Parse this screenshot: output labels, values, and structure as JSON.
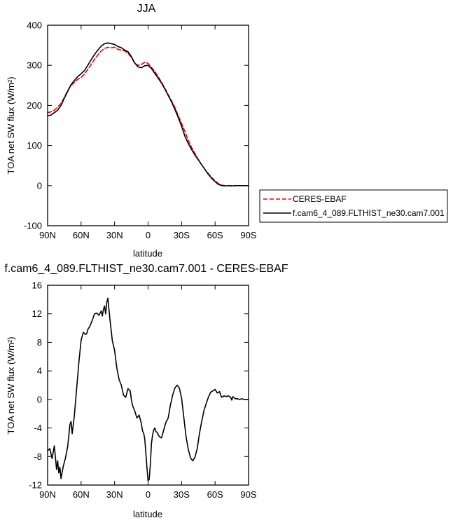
{
  "chart_data": [
    {
      "type": "line",
      "title": "JJA",
      "xlabel": "latitude",
      "ylabel": "TOA net SW flux (W/m²)",
      "xlim": [
        90,
        -90
      ],
      "ylim": [
        -100,
        400
      ],
      "x_ticks": [
        90,
        60,
        30,
        0,
        -30,
        -60,
        -90
      ],
      "x_tick_labels": [
        "90N",
        "60N",
        "30N",
        "0",
        "30S",
        "60S",
        "90S"
      ],
      "y_ticks": [
        -100,
        0,
        100,
        200,
        300,
        400
      ],
      "y_tick_labels": [
        "-100",
        "0",
        "100",
        "200",
        "300",
        "400"
      ],
      "legend_placement": "right",
      "series": [
        {
          "name": "CERES-EBAF",
          "color": "#e8000b",
          "dash": "dashed",
          "x": [
            90,
            87,
            84,
            81,
            78,
            75,
            72,
            69,
            66,
            63,
            60,
            57,
            54,
            51,
            48,
            45,
            42,
            39,
            36,
            33,
            30,
            27,
            24,
            21,
            18,
            15,
            12,
            9,
            6,
            3,
            0,
            -3,
            -6,
            -9,
            -12,
            -15,
            -18,
            -21,
            -24,
            -27,
            -30,
            -33,
            -36,
            -39,
            -42,
            -45,
            -48,
            -51,
            -54,
            -57,
            -60,
            -63,
            -66,
            -69,
            -72,
            -75,
            -78,
            -81,
            -84,
            -87,
            -90
          ],
          "values": [
            182,
            184,
            188,
            196,
            205,
            220,
            237,
            250,
            258,
            265,
            270,
            278,
            290,
            302,
            315,
            326,
            336,
            342,
            345,
            344,
            345,
            340,
            338,
            336,
            330,
            320,
            305,
            300,
            302,
            308,
            305,
            295,
            285,
            272,
            258,
            243,
            227,
            212,
            195,
            175,
            155,
            135,
            113,
            95,
            80,
            65,
            52,
            40,
            30,
            20,
            12,
            5,
            1,
            0,
            0,
            0,
            0,
            0,
            0,
            0,
            0
          ]
        },
        {
          "name": "f.cam6_4_089.FLTHIST_ne30.cam7.001",
          "color": "#000000",
          "dash": "solid",
          "x": [
            90,
            87,
            84,
            81,
            78,
            75,
            72,
            69,
            66,
            63,
            60,
            57,
            54,
            51,
            48,
            45,
            42,
            39,
            36,
            33,
            30,
            27,
            24,
            21,
            18,
            15,
            12,
            9,
            6,
            3,
            0,
            -3,
            -6,
            -9,
            -12,
            -15,
            -18,
            -21,
            -24,
            -27,
            -30,
            -33,
            -36,
            -39,
            -42,
            -45,
            -48,
            -51,
            -54,
            -57,
            -60,
            -63,
            -66,
            -69,
            -72,
            -75,
            -78,
            -81,
            -84,
            -87,
            -90
          ],
          "values": [
            174,
            176,
            182,
            188,
            200,
            218,
            235,
            252,
            262,
            272,
            279,
            287,
            300,
            314,
            327,
            338,
            348,
            354,
            356,
            354,
            352,
            347,
            344,
            338,
            334,
            322,
            306,
            296,
            294,
            299,
            300,
            292,
            280,
            268,
            256,
            241,
            225,
            209,
            190,
            170,
            148,
            123,
            105,
            90,
            76,
            64,
            52,
            40,
            28,
            18,
            10,
            3,
            0,
            -1,
            0,
            -1,
            0,
            0,
            0,
            0,
            0
          ]
        }
      ]
    },
    {
      "type": "line",
      "title": "f.cam6_4_089.FLTHIST_ne30.cam7.001 - CERES-EBAF",
      "xlabel": "latitude",
      "ylabel": "TOA net SW flux (W/m²)",
      "xlim": [
        90,
        -90
      ],
      "ylim": [
        -12,
        16
      ],
      "x_ticks": [
        90,
        60,
        30,
        0,
        -30,
        -60,
        -90
      ],
      "x_tick_labels": [
        "90N",
        "60N",
        "30N",
        "0",
        "30S",
        "60S",
        "90S"
      ],
      "y_ticks": [
        -12,
        -8,
        -4,
        0,
        4,
        8,
        12,
        16
      ],
      "y_tick_labels": [
        "-12",
        "-8",
        "-4",
        "0",
        "4",
        "8",
        "12",
        "16"
      ],
      "series": [
        {
          "color": "#000000",
          "dash": "solid",
          "x": [
            90,
            88,
            86,
            84,
            82,
            81,
            80,
            79,
            78,
            77,
            76,
            74,
            72,
            70,
            69,
            68,
            67,
            66,
            64,
            62,
            60,
            58,
            56,
            55,
            54,
            52,
            50,
            48,
            46,
            44,
            42,
            41,
            40,
            39,
            38,
            37,
            36,
            35,
            34,
            33,
            32,
            30,
            28,
            26,
            24,
            22,
            20,
            18,
            16,
            15,
            14,
            12,
            10,
            8,
            6,
            5,
            4,
            3,
            2,
            1,
            0,
            -1,
            -2,
            -3,
            -4,
            -5,
            -6,
            -7,
            -8,
            -9,
            -10,
            -12,
            -14,
            -16,
            -18,
            -20,
            -22,
            -24,
            -26,
            -28,
            -30,
            -32,
            -34,
            -36,
            -38,
            -40,
            -42,
            -44,
            -46,
            -48,
            -50,
            -52,
            -54,
            -56,
            -58,
            -60,
            -62,
            -64,
            -65,
            -66,
            -68,
            -70,
            -72,
            -74,
            -75,
            -76,
            -78,
            -80,
            -82,
            -84,
            -86,
            -88,
            -90
          ],
          "values": [
            -7.2,
            -6.9,
            -8.3,
            -6.5,
            -9.8,
            -8.6,
            -10.3,
            -9.5,
            -11.1,
            -10.2,
            -9.4,
            -8.2,
            -6.6,
            -3.5,
            -3.1,
            -4.8,
            -3.5,
            -2.2,
            1.5,
            5.2,
            8.3,
            9.4,
            9.1,
            9.2,
            9.8,
            10.3,
            11.1,
            12.0,
            12.1,
            11.8,
            12.4,
            11.7,
            12.6,
            13.1,
            12.0,
            13.6,
            14.2,
            12.5,
            11.0,
            9.6,
            8.2,
            6.9,
            4.4,
            2.8,
            2.0,
            0.6,
            0.3,
            1.5,
            1.2,
            0.0,
            -0.8,
            -1.6,
            -2.6,
            -2.2,
            -3.4,
            -4.4,
            -4.7,
            -5.5,
            -7.5,
            -9.6,
            -11.4,
            -11.2,
            -9.2,
            -6.2,
            -5.0,
            -4.3,
            -4.0,
            -4.5,
            -4.6,
            -4.9,
            -5.2,
            -5.4,
            -4.3,
            -3.2,
            -2.6,
            -0.8,
            0.6,
            1.6,
            2.0,
            1.6,
            0.2,
            -2.5,
            -5.2,
            -7.0,
            -8.2,
            -8.6,
            -8.1,
            -6.9,
            -4.8,
            -3.1,
            -1.6,
            -0.6,
            0.3,
            1.0,
            1.2,
            1.4,
            0.9,
            1.1,
            0.6,
            0.3,
            0.5,
            0.4,
            0.5,
            0.3,
            -0.1,
            0.4,
            0.1,
            0.1,
            0.0,
            0.1,
            0.0,
            0.0,
            0.0
          ]
        }
      ]
    }
  ]
}
